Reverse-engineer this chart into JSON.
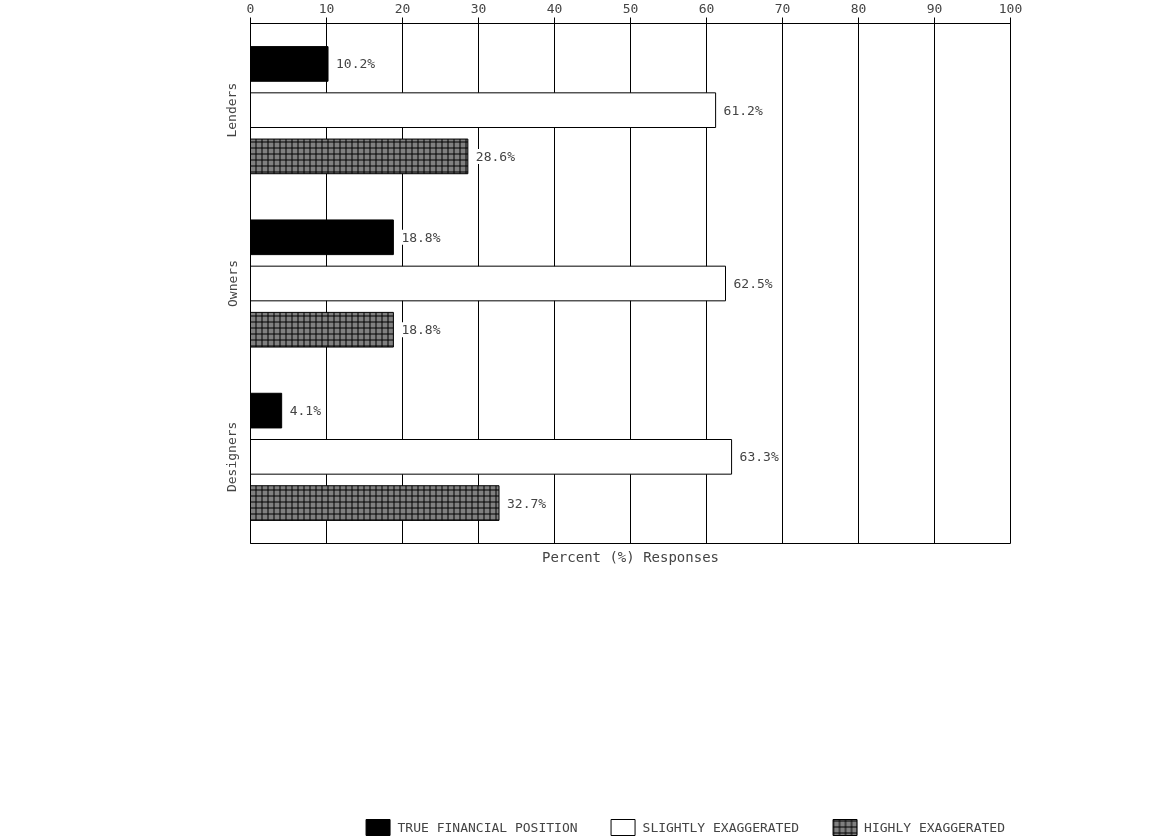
{
  "chart_data": {
    "type": "bar",
    "orientation": "horizontal",
    "xlabel": "Percent (%) Responses",
    "categories": [
      "Lenders",
      "Owners",
      "Designers"
    ],
    "series": [
      {
        "name": "TRUE FINANCIAL POSITION",
        "color": "#000000",
        "values": [
          10.2,
          18.8,
          4.1
        ],
        "value_labels": [
          "10.2%",
          "18.8%",
          "4.1%"
        ]
      },
      {
        "name": "SLIGHTLY EXAGGERATED",
        "color": "#ffffff",
        "values": [
          61.2,
          62.5,
          63.3
        ],
        "value_labels": [
          "61.2%",
          "62.5%",
          "63.3%"
        ]
      },
      {
        "name": "HIGHLY EXAGGERATED",
        "color": "#808080",
        "values": [
          28.6,
          18.8,
          32.7
        ],
        "value_labels": [
          "28.6%",
          "18.8%",
          "32.7%"
        ]
      }
    ],
    "xlim": [
      0,
      100
    ],
    "xticks": [
      0,
      10,
      20,
      30,
      40,
      50,
      60,
      70,
      80,
      90,
      {
        "value": 100,
        "label": "100"
      }
    ],
    "grid": "x",
    "legend": "bottom"
  }
}
